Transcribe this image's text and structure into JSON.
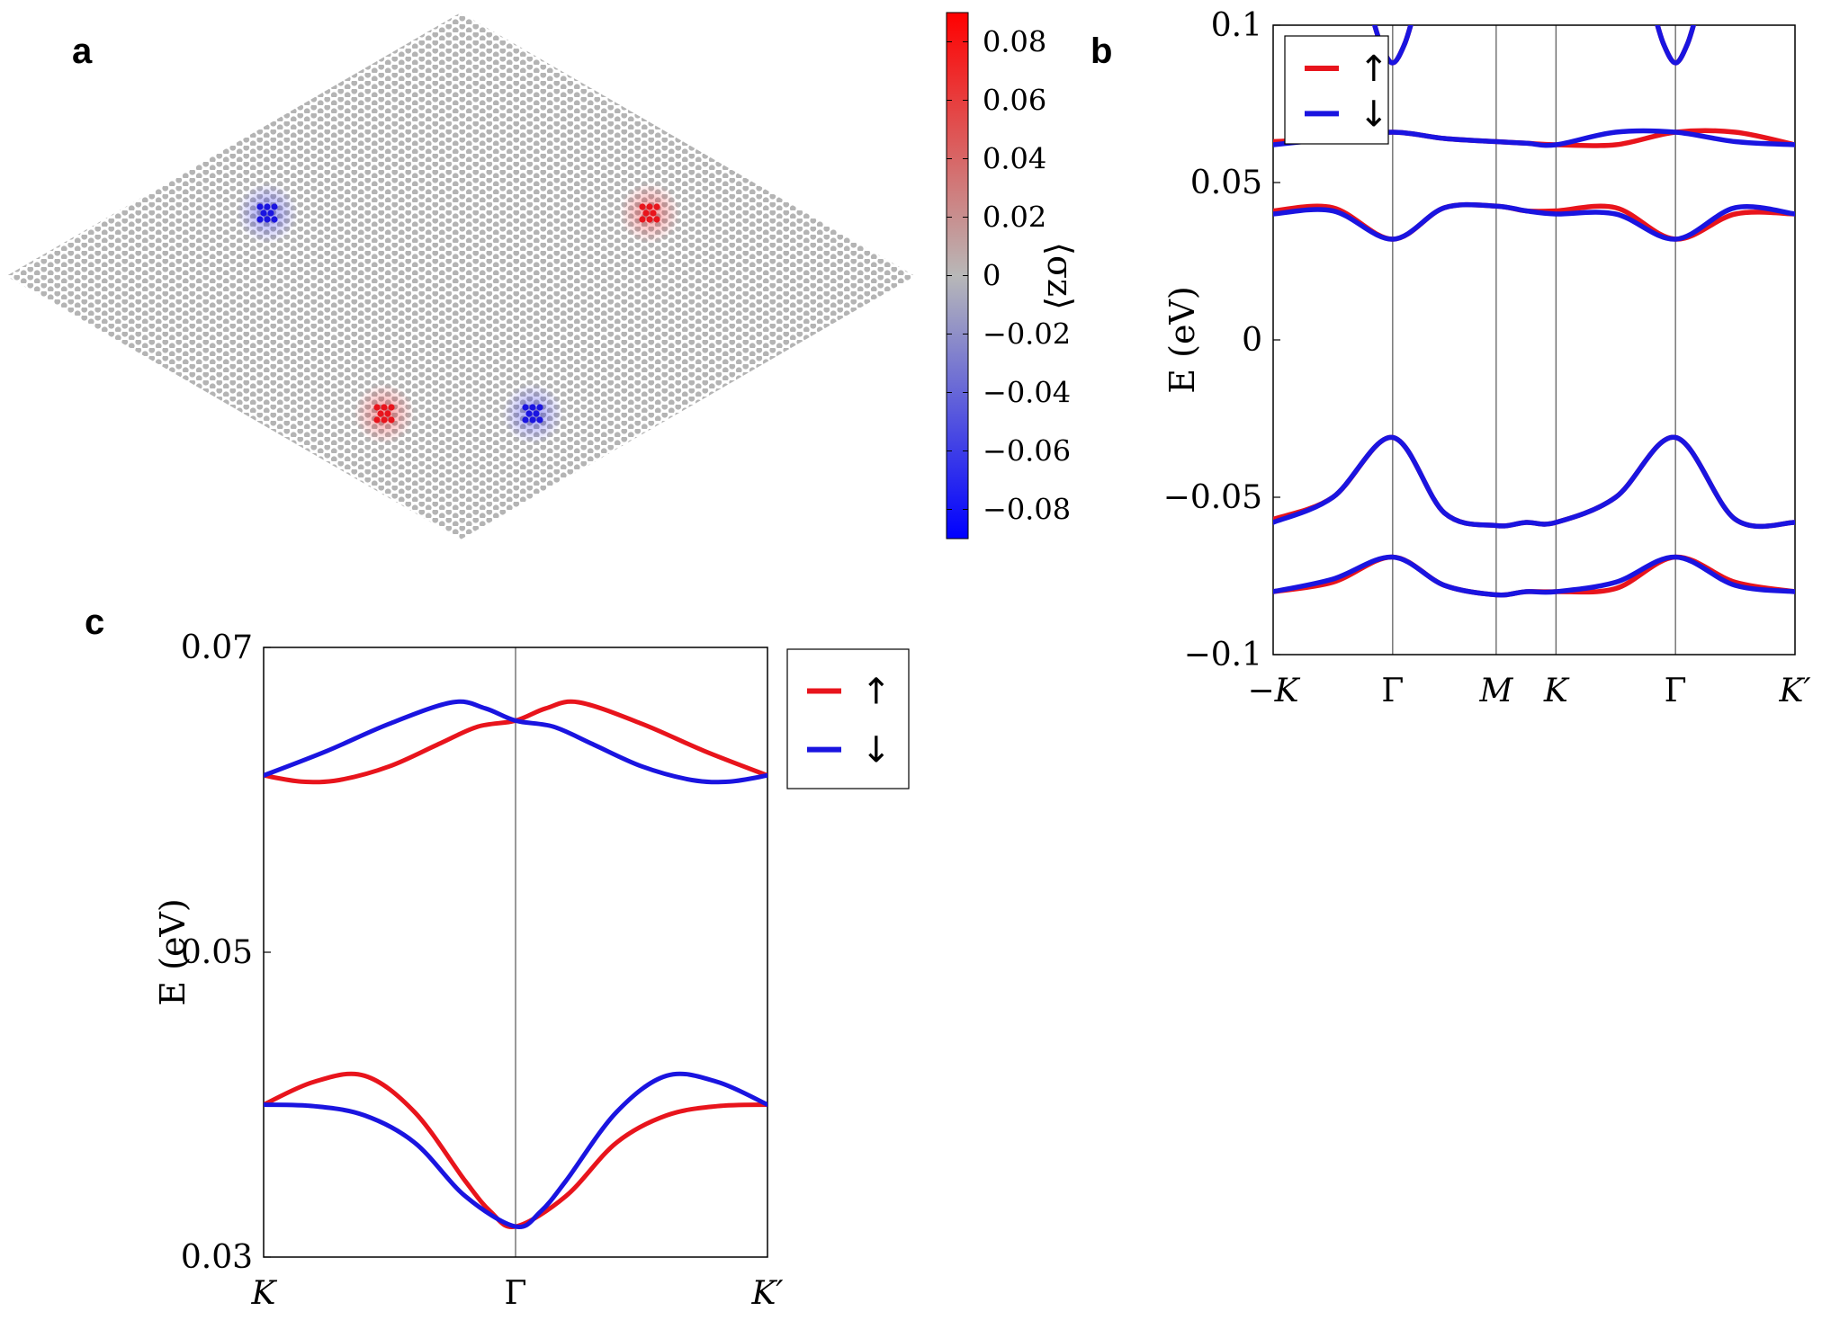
{
  "panels": {
    "a": "a",
    "b": "b",
    "c": "c"
  },
  "colors": {
    "up": "#e8141c",
    "down": "#1a14e0",
    "neutral": "#b4b4b4",
    "cb_top": "#ff0000",
    "cb_bottom": "#0000ff"
  },
  "chart_data": [
    {
      "type": "heatmap",
      "panel": "a",
      "title": "",
      "colorbar": {
        "label": "⟨σz⟩",
        "range": [
          -0.09,
          0.09
        ],
        "ticks": [
          "0.08",
          "0.06",
          "0.04",
          "0.02",
          "0",
          "−0.02",
          "−0.04",
          "−0.06",
          "−0.08"
        ],
        "tick_values": [
          0.08,
          0.06,
          0.04,
          0.02,
          0,
          -0.02,
          -0.04,
          -0.06,
          -0.08
        ]
      },
      "lattice": {
        "shape": "rhombus",
        "background_value": 0
      },
      "clusters": [
        {
          "name": "upper-left",
          "value": -0.08,
          "color": "blue"
        },
        {
          "name": "upper-right",
          "value": 0.08,
          "color": "red"
        },
        {
          "name": "lower-left",
          "value": 0.08,
          "color": "red"
        },
        {
          "name": "lower-right",
          "value": -0.08,
          "color": "blue"
        }
      ]
    },
    {
      "type": "line",
      "panel": "b",
      "xlabel": "",
      "ylabel": "E (eV)",
      "ylim": [
        -0.1,
        0.1
      ],
      "yticks": [
        "0.1",
        "0.05",
        "0",
        "−0.05",
        "−0.1"
      ],
      "ytick_values": [
        0.1,
        0.05,
        0,
        -0.05,
        -0.1
      ],
      "xticks": [
        "−K",
        "Γ",
        "M",
        "K",
        "Γ",
        "K′"
      ],
      "xtick_positions": [
        0,
        1,
        1.866,
        2.366,
        3.366,
        4.366
      ],
      "legend": {
        "location": "top-left",
        "entries": [
          "↑",
          "↓"
        ]
      },
      "series": [
        {
          "name": "↑",
          "color": "red",
          "x": [
            0,
            0.5,
            1,
            1.433,
            1.866,
            2.116,
            2.366,
            2.866,
            3.366,
            3.866,
            4.366
          ],
          "bands": [
            [
              0.063,
              0.064,
              0.066,
              0.064,
              0.063,
              0.0625,
              0.062,
              0.062,
              0.066,
              0.066,
              0.062
            ],
            [
              0.041,
              0.042,
              0.032,
              0.042,
              0.0425,
              0.041,
              0.041,
              0.042,
              0.032,
              0.04,
              0.04
            ],
            [
              -0.057,
              -0.05,
              -0.031,
              -0.055,
              -0.059,
              -0.058,
              -0.058,
              -0.05,
              -0.031,
              -0.057,
              -0.058
            ],
            [
              -0.08,
              -0.077,
              -0.069,
              -0.078,
              -0.081,
              -0.08,
              -0.08,
              -0.079,
              -0.069,
              -0.077,
              -0.08
            ]
          ]
        },
        {
          "name": "↓",
          "color": "blue",
          "x": [
            0,
            0.5,
            1,
            1.433,
            1.866,
            2.116,
            2.366,
            2.866,
            3.366,
            3.866,
            4.366
          ],
          "bands": [
            [
              0.062,
              0.064,
              0.066,
              0.064,
              0.063,
              0.0625,
              0.062,
              0.066,
              0.066,
              0.063,
              0.062
            ],
            [
              0.04,
              0.041,
              0.032,
              0.042,
              0.0425,
              0.041,
              0.04,
              0.04,
              0.032,
              0.042,
              0.04
            ],
            [
              -0.058,
              -0.05,
              -0.031,
              -0.055,
              -0.059,
              -0.058,
              -0.058,
              -0.05,
              -0.031,
              -0.057,
              -0.058
            ],
            [
              -0.08,
              -0.076,
              -0.069,
              -0.078,
              -0.081,
              -0.08,
              -0.08,
              -0.077,
              -0.069,
              -0.078,
              -0.08
            ]
          ]
        }
      ]
    },
    {
      "type": "line",
      "panel": "c",
      "xlabel": "",
      "ylabel": "E (eV)",
      "ylim": [
        0.03,
        0.07
      ],
      "yticks": [
        "0.07",
        "0.05",
        "0.03"
      ],
      "ytick_values": [
        0.07,
        0.05,
        0.03
      ],
      "xticks": [
        "K",
        "Γ",
        "K′"
      ],
      "xtick_positions": [
        0,
        1,
        2
      ],
      "legend": {
        "location": "outside-right",
        "entries": [
          "↑",
          "↓"
        ]
      },
      "series": [
        {
          "name": "↑",
          "color": "red",
          "upper_band": {
            "x": [
              0,
              0.15,
              0.3,
              0.5,
              0.7,
              0.85,
              1,
              1.12,
              1.25,
              1.5,
              1.75,
              2
            ],
            "y": [
              0.0616,
              0.0612,
              0.0613,
              0.0622,
              0.0637,
              0.0648,
              0.0652,
              0.066,
              0.0664,
              0.065,
              0.0632,
              0.0616
            ]
          },
          "lower_band": {
            "x": [
              0,
              0.2,
              0.4,
              0.6,
              0.8,
              0.9,
              1,
              1.2,
              1.4,
              1.6,
              1.8,
              2
            ],
            "y": [
              0.04,
              0.0415,
              0.0419,
              0.0395,
              0.035,
              0.033,
              0.032,
              0.034,
              0.0375,
              0.0393,
              0.0399,
              0.04
            ]
          }
        },
        {
          "name": "↓",
          "color": "blue",
          "upper_band": {
            "x": [
              0,
              0.25,
              0.5,
              0.75,
              0.88,
              1,
              1.15,
              1.3,
              1.5,
              1.7,
              1.85,
              2
            ],
            "y": [
              0.0616,
              0.0632,
              0.065,
              0.0664,
              0.066,
              0.0652,
              0.0648,
              0.0637,
              0.0622,
              0.0613,
              0.0612,
              0.0616
            ]
          },
          "lower_band": {
            "x": [
              0,
              0.2,
              0.4,
              0.6,
              0.8,
              1,
              1.1,
              1.2,
              1.4,
              1.6,
              1.8,
              2
            ],
            "y": [
              0.04,
              0.0399,
              0.0393,
              0.0375,
              0.034,
              0.032,
              0.033,
              0.035,
              0.0395,
              0.0419,
              0.0415,
              0.04
            ]
          }
        }
      ]
    }
  ]
}
